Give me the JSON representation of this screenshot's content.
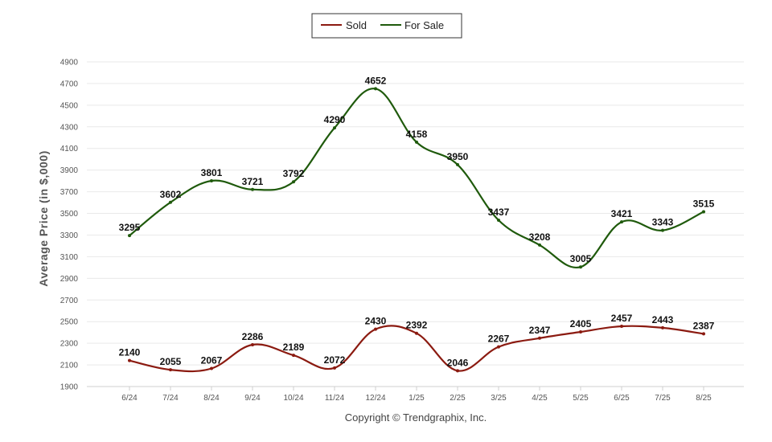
{
  "chart_data": {
    "type": "line",
    "categories": [
      "6/24",
      "7/24",
      "8/24",
      "9/24",
      "10/24",
      "11/24",
      "12/24",
      "1/25",
      "2/25",
      "3/25",
      "4/25",
      "5/25",
      "6/25",
      "7/25",
      "8/25"
    ],
    "series": [
      {
        "name": "Sold",
        "color": "#8b1a10",
        "values": [
          2140,
          2055,
          2067,
          2286,
          2189,
          2072,
          2430,
          2392,
          2046,
          2267,
          2347,
          2405,
          2457,
          2443,
          2387
        ]
      },
      {
        "name": "For Sale",
        "color": "#1f5a0c",
        "values": [
          3295,
          3602,
          3801,
          3721,
          3792,
          4290,
          4652,
          4158,
          3950,
          3437,
          3208,
          3005,
          3421,
          3343,
          3515
        ]
      }
    ],
    "ylabel": "Average Price (in $,000)",
    "ylim": [
      1900,
      4900
    ],
    "yticks": [
      1900,
      2100,
      2300,
      2500,
      2700,
      2900,
      3100,
      3300,
      3500,
      3700,
      3900,
      4100,
      4300,
      4500,
      4700,
      4900
    ],
    "grid": true,
    "legend_position": "top-center",
    "data_labels": true
  },
  "footer": {
    "copyright": "Copyright © Trendgraphix, Inc."
  }
}
